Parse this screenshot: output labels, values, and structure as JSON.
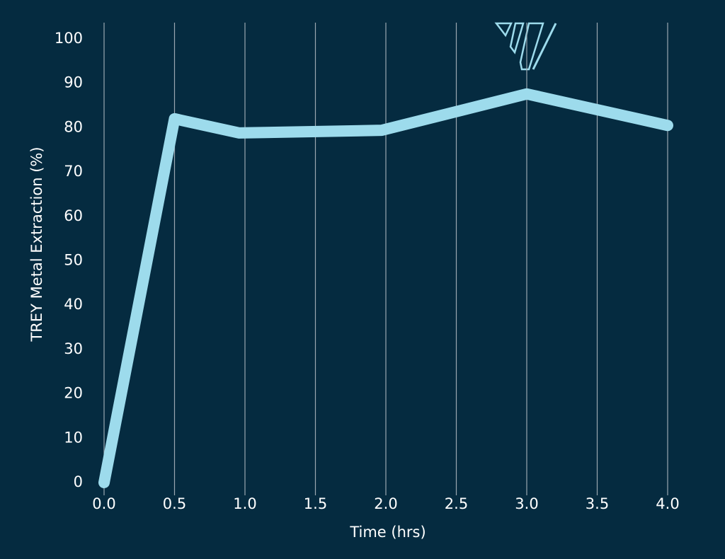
{
  "chart_data": {
    "type": "line",
    "x_label": "Time (hrs)",
    "y_label": "TREY Metal Extraction (%)",
    "x": [
      0,
      0.5,
      0.96,
      1.97,
      3.0,
      4.0
    ],
    "series": [
      {
        "name": "TREY Metal Extraction",
        "color": "#9ddbec",
        "values": [
          0,
          82,
          78.8,
          79.4,
          87.6,
          80.5
        ]
      }
    ],
    "xlim": [
      0,
      4
    ],
    "ylim": [
      0,
      100
    ],
    "xticks": [
      {
        "value": 0,
        "label": "0.0"
      },
      {
        "value": 0.5,
        "label": "0.5"
      },
      {
        "value": 1,
        "label": "1.0"
      },
      {
        "value": 1.5,
        "label": "1.5"
      },
      {
        "value": 2,
        "label": "2.0"
      },
      {
        "value": 2.5,
        "label": "2.5"
      },
      {
        "value": 3,
        "label": "3.0"
      },
      {
        "value": 3.5,
        "label": "3.5"
      },
      {
        "value": 4,
        "label": "4.0"
      }
    ],
    "yticks": [
      0,
      10,
      20,
      30,
      40,
      50,
      60,
      70,
      80,
      90,
      100
    ],
    "grid": "x"
  }
}
